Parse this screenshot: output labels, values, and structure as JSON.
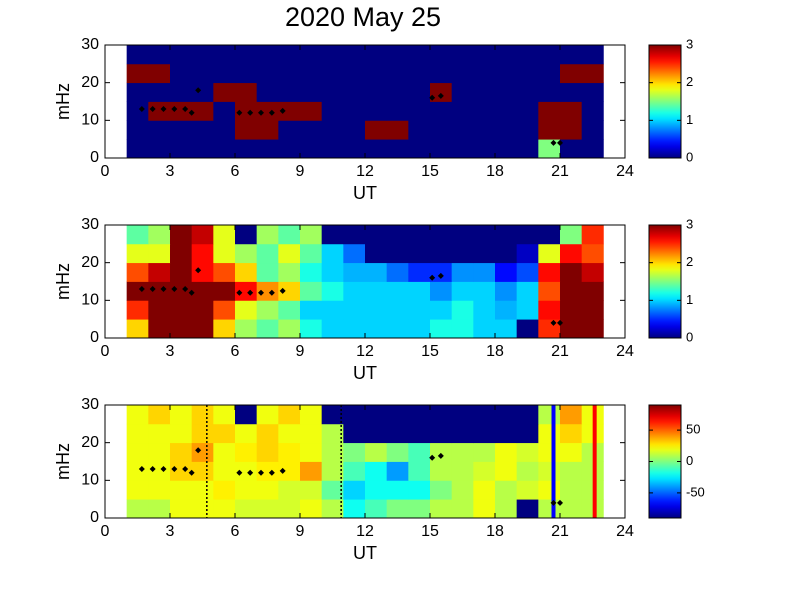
{
  "chart_data": [
    {
      "type": "heatmap",
      "title": "2020 May 25",
      "xlabel": "UT",
      "ylabel": "mHz",
      "colormap": "jet",
      "x": [
        1.5,
        2.5,
        3.5,
        4.5,
        5.5,
        6.5,
        7.5,
        8.5,
        9.5,
        10.5,
        11.5,
        12.5,
        13.5,
        14.5,
        15.5,
        16.5,
        17.5,
        18.5,
        19.5,
        20.5,
        21.5,
        22.5
      ],
      "y": [
        2.5,
        7.5,
        12.5,
        17.5,
        22.5,
        27.5
      ],
      "values": [
        [
          0,
          0,
          0,
          0,
          0,
          0,
          0,
          0,
          0,
          0,
          0,
          0,
          0,
          0,
          0,
          0,
          0,
          0,
          0,
          1.5,
          0,
          0
        ],
        [
          0,
          0,
          0,
          0,
          0,
          3,
          3,
          0,
          0,
          0,
          0,
          3,
          3,
          0,
          0,
          0,
          0,
          0,
          0,
          3,
          3,
          0
        ],
        [
          0,
          3,
          3,
          3,
          0,
          3,
          3,
          3,
          3,
          0,
          0,
          0,
          0,
          0,
          0,
          0,
          0,
          0,
          0,
          3,
          3,
          0
        ],
        [
          0,
          0,
          0,
          0,
          3,
          3,
          0,
          0,
          0,
          0,
          0,
          0,
          0,
          0,
          3,
          0,
          0,
          0,
          0,
          0,
          0,
          0
        ],
        [
          3,
          3,
          0,
          0,
          0,
          0,
          0,
          0,
          0,
          0,
          0,
          0,
          0,
          0,
          0,
          0,
          0,
          0,
          0,
          0,
          3,
          3
        ],
        [
          0,
          0,
          0,
          0,
          0,
          0,
          0,
          0,
          0,
          0,
          0,
          0,
          0,
          0,
          0,
          0,
          0,
          0,
          0,
          0,
          0,
          0
        ]
      ],
      "markers": {
        "color": "#000000",
        "x": [
          1.7,
          2.2,
          2.7,
          3.2,
          3.7,
          4.0,
          4.3,
          6.2,
          6.7,
          7.2,
          7.7,
          8.2,
          15.1,
          15.5,
          20.7,
          21.0
        ],
        "y": [
          13,
          13,
          13,
          13,
          13,
          12,
          18,
          12,
          12,
          12,
          12,
          12.5,
          16,
          16.5,
          4,
          4
        ]
      },
      "xlim": [
        0,
        24
      ],
      "xticks": [
        0,
        3,
        6,
        9,
        12,
        15,
        18,
        21,
        24
      ],
      "ylim": [
        0,
        30
      ],
      "yticks": [
        0,
        10,
        20,
        30
      ],
      "clim": [
        0,
        3
      ],
      "cticks": [
        0,
        1,
        2,
        3
      ]
    },
    {
      "type": "heatmap",
      "xlabel": "UT",
      "ylabel": "mHz",
      "colormap": "jet",
      "x": [
        1.5,
        2.5,
        3.5,
        4.5,
        5.5,
        6.5,
        7.5,
        8.5,
        9.5,
        10.5,
        11.5,
        12.5,
        13.5,
        14.5,
        15.5,
        16.5,
        17.5,
        18.5,
        19.5,
        20.5,
        21.5,
        22.5
      ],
      "y": [
        2.5,
        7.5,
        12.5,
        17.5,
        22.5,
        27.5
      ],
      "values": [
        [
          2,
          3,
          3,
          3,
          2,
          1.6,
          1.4,
          1.6,
          1.2,
          1,
          1,
          1,
          1,
          1,
          1.2,
          1.2,
          1,
          1,
          0,
          2.5,
          3,
          3
        ],
        [
          2.5,
          3,
          3,
          3,
          2.4,
          1.8,
          1.6,
          1.4,
          1,
          1,
          1,
          1,
          1,
          1,
          1,
          1.2,
          1,
          0.9,
          1,
          2.6,
          3,
          3
        ],
        [
          3,
          3,
          3,
          3,
          3,
          2.6,
          2.2,
          2,
          1.4,
          1.2,
          1,
          1,
          1,
          1,
          0.8,
          1,
          1,
          0.8,
          1,
          2.4,
          3,
          3
        ],
        [
          2.4,
          2.8,
          3,
          2.6,
          2.4,
          2,
          1.4,
          1.6,
          1.2,
          1,
          0.9,
          0.9,
          0.7,
          0.5,
          0.5,
          0.8,
          0.8,
          0.4,
          0.6,
          2.6,
          3,
          2.8
        ],
        [
          1.8,
          1.8,
          3,
          2.6,
          1.8,
          1.6,
          1.4,
          1.8,
          1.4,
          1,
          0.7,
          0,
          0,
          0,
          0,
          0,
          0,
          0,
          0.2,
          1.8,
          2.6,
          2.4
        ],
        [
          1.4,
          1.6,
          3,
          2.8,
          1.8,
          0,
          1.6,
          1.4,
          1.6,
          0,
          0,
          0,
          0,
          0,
          0,
          0,
          0,
          0,
          0,
          0,
          1.5,
          2.5
        ]
      ],
      "markers": {
        "color": "#000000",
        "x": [
          1.7,
          2.2,
          2.7,
          3.2,
          3.7,
          4.0,
          4.3,
          6.2,
          6.7,
          7.2,
          7.7,
          8.2,
          15.1,
          15.5,
          20.7,
          21.0
        ],
        "y": [
          13,
          13,
          13,
          13,
          13,
          12,
          18,
          12,
          12,
          12,
          12,
          12.5,
          16,
          16.5,
          4,
          4
        ]
      },
      "xlim": [
        0,
        24
      ],
      "xticks": [
        0,
        3,
        6,
        9,
        12,
        15,
        18,
        21,
        24
      ],
      "ylim": [
        0,
        30
      ],
      "yticks": [
        0,
        10,
        20,
        30
      ],
      "clim": [
        0,
        3
      ],
      "cticks": [
        0,
        1,
        2,
        3
      ]
    },
    {
      "type": "heatmap",
      "xlabel": "UT",
      "ylabel": "mHz",
      "colormap": "jet",
      "x": [
        1.5,
        2.5,
        3.5,
        4.5,
        5.5,
        6.5,
        7.5,
        8.5,
        9.5,
        10.5,
        11.5,
        12.5,
        13.5,
        14.5,
        15.5,
        16.5,
        17.5,
        18.5,
        19.5,
        20.5,
        21.5,
        22.5
      ],
      "y": [
        2.5,
        7.5,
        12.5,
        17.5,
        22.5,
        27.5
      ],
      "values": [
        [
          10,
          10,
          20,
          20,
          20,
          15,
          15,
          15,
          20,
          10,
          -20,
          -10,
          0,
          0,
          10,
          10,
          20,
          10,
          -90,
          10,
          10,
          10
        ],
        [
          20,
          20,
          20,
          20,
          25,
          20,
          20,
          15,
          15,
          -5,
          -30,
          -20,
          -20,
          -20,
          0,
          10,
          20,
          10,
          15,
          20,
          10,
          10
        ],
        [
          20,
          20,
          30,
          30,
          20,
          20,
          25,
          25,
          40,
          10,
          -10,
          -20,
          -40,
          -10,
          10,
          10,
          15,
          20,
          10,
          15,
          10,
          10
        ],
        [
          20,
          20,
          30,
          40,
          20,
          25,
          30,
          25,
          20,
          10,
          0,
          10,
          0,
          -10,
          10,
          10,
          10,
          20,
          15,
          20,
          20,
          10
        ],
        [
          20,
          20,
          20,
          30,
          30,
          20,
          30,
          20,
          20,
          10,
          -90,
          -90,
          -90,
          -90,
          -90,
          -90,
          -90,
          -90,
          -90,
          20,
          30,
          20
        ],
        [
          20,
          30,
          20,
          30,
          20,
          -90,
          20,
          30,
          20,
          -90,
          -90,
          -90,
          -90,
          -90,
          -90,
          -90,
          -90,
          -90,
          -90,
          10,
          40,
          20
        ]
      ],
      "markers": {
        "color": "#000000",
        "x": [
          1.7,
          2.2,
          2.7,
          3.2,
          3.7,
          4.0,
          4.3,
          6.2,
          6.7,
          7.2,
          7.7,
          8.2,
          15.1,
          15.5,
          20.7,
          21.0
        ],
        "y": [
          13,
          13,
          13,
          13,
          13,
          12,
          18,
          12,
          12,
          12,
          12,
          12.5,
          16,
          16.5,
          4,
          4
        ]
      },
      "vlines": [
        {
          "x": 4.7,
          "color": "#000000",
          "style": "dotted"
        },
        {
          "x": 10.9,
          "color": "#000000",
          "style": "dotted"
        },
        {
          "x": 20.7,
          "color": "#0000ff",
          "style": "solid"
        },
        {
          "x": 22.6,
          "color": "#ff0000",
          "style": "solid"
        }
      ],
      "xlim": [
        0,
        24
      ],
      "xticks": [
        0,
        3,
        6,
        9,
        12,
        15,
        18,
        21,
        24
      ],
      "ylim": [
        0,
        30
      ],
      "yticks": [
        0,
        10,
        20,
        30
      ],
      "clim": [
        -90,
        90
      ],
      "cticks": [
        -50,
        0,
        50
      ]
    }
  ]
}
